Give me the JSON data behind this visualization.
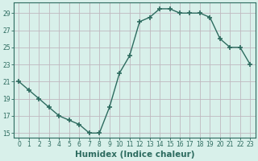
{
  "x": [
    0,
    1,
    2,
    3,
    4,
    5,
    6,
    7,
    8,
    9,
    10,
    11,
    12,
    13,
    14,
    15,
    16,
    17,
    18,
    19,
    20,
    21,
    22,
    23
  ],
  "y": [
    21,
    20,
    19,
    18,
    17,
    16.5,
    16,
    15,
    15,
    18,
    22,
    24,
    28,
    28.5,
    29.5,
    29.5,
    29,
    29,
    29,
    28.5,
    26,
    25,
    25,
    23
  ],
  "line_color": "#2d6b5f",
  "marker": "+",
  "marker_size": 4,
  "marker_linewidth": 1.2,
  "line_width": 1.0,
  "bg_color": "#d8f0ea",
  "grid_color": "#c0b8c0",
  "xlabel": "Humidex (Indice chaleur)",
  "ylabel": "",
  "xlim": [
    -0.5,
    23.5
  ],
  "ylim": [
    14.5,
    30.2
  ],
  "yticks": [
    15,
    17,
    19,
    21,
    23,
    25,
    27,
    29
  ],
  "xticks": [
    0,
    1,
    2,
    3,
    4,
    5,
    6,
    7,
    8,
    9,
    10,
    11,
    12,
    13,
    14,
    15,
    16,
    17,
    18,
    19,
    20,
    21,
    22,
    23
  ],
  "tick_color": "#2d6b5f",
  "label_fontsize": 5.5,
  "xlabel_fontsize": 7.5,
  "spine_color": "#2d6b5f"
}
